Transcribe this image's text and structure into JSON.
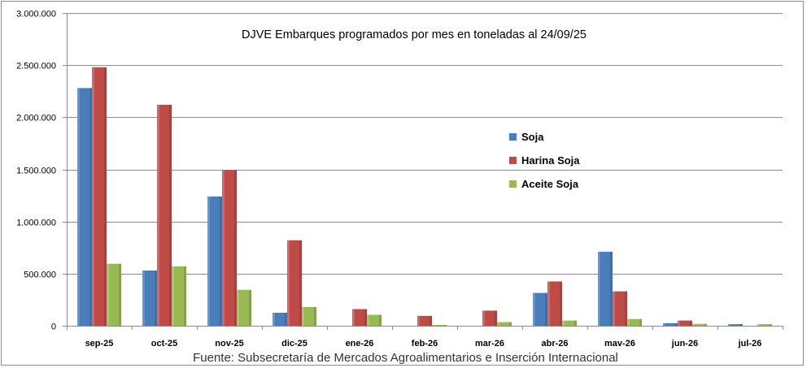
{
  "chart_data": {
    "type": "bar",
    "title": "DJVE Embarques programados por mes en toneladas al 24/09/25",
    "categories": [
      "sep-25",
      "oct-25",
      "nov-25",
      "dic-25",
      "ene-26",
      "feb-26",
      "mar-26",
      "abr-26",
      "mav-26",
      "jun-26",
      "jul-26"
    ],
    "series": [
      {
        "name": "Soja",
        "color": "#4a7ebb",
        "values": [
          2280000,
          530000,
          1240000,
          125000,
          0,
          0,
          0,
          315000,
          710000,
          25000,
          15000
        ]
      },
      {
        "name": "Harina Soja",
        "color": "#be4b48",
        "values": [
          2480000,
          2120000,
          1495000,
          820000,
          160000,
          95000,
          145000,
          425000,
          330000,
          50000,
          0
        ]
      },
      {
        "name": "Aceite Soja",
        "color": "#98b954",
        "values": [
          595000,
          570000,
          345000,
          180000,
          105000,
          8000,
          35000,
          50000,
          65000,
          18000,
          15000
        ]
      }
    ],
    "ylim": [
      0,
      3000000
    ],
    "yticks": [
      "0",
      "500.000",
      "1.000.000",
      "1.500.000",
      "2.000.000",
      "2.500.000",
      "3.000.000"
    ],
    "grid": true,
    "legend_position": "center-right"
  },
  "source": "Fuente: Subsecretaría de Mercados Agroalimentarios e Inserción Internacional"
}
